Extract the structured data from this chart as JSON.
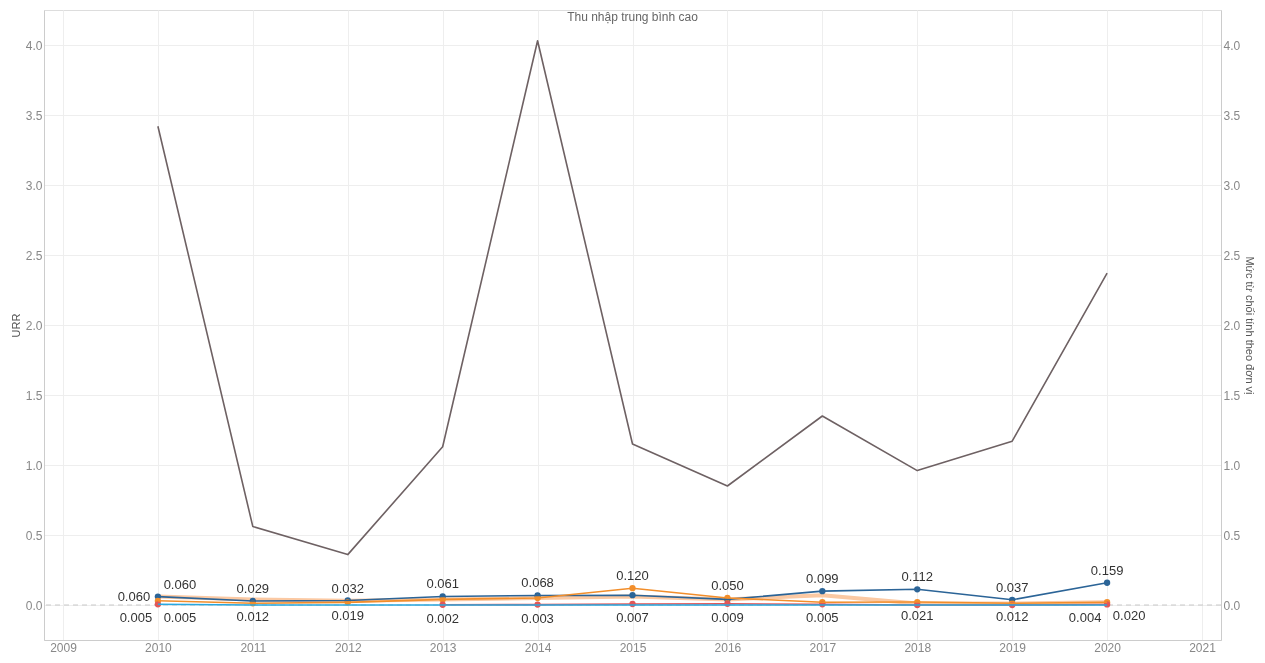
{
  "chart_data": {
    "type": "line",
    "title": "Thu nhập trung bình cao",
    "ylabel": "URR",
    "y2label": "Mức từ chối tính theo đơn vị",
    "x": [
      2010,
      2011,
      2012,
      2013,
      2014,
      2015,
      2016,
      2017,
      2018,
      2019,
      2020
    ],
    "xlim": [
      2008.8,
      2021.2
    ],
    "xticks": [
      2009,
      2010,
      2011,
      2012,
      2013,
      2014,
      2015,
      2016,
      2017,
      2018,
      2019,
      2020,
      2021
    ],
    "ylim": [
      -0.25,
      4.25
    ],
    "yticks": [
      {
        "value": 0,
        "label": "0.0"
      },
      0.5,
      {
        "value": 1,
        "label": "1.0"
      },
      1.5,
      {
        "value": 2,
        "label": "2.0"
      },
      2.5,
      {
        "value": 3,
        "label": "3.0"
      },
      3.5,
      {
        "value": 4,
        "label": "4.0"
      }
    ],
    "y2lim": [
      -0.25,
      4.25
    ],
    "y2ticks": [
      {
        "value": 0,
        "label": "0.0"
      },
      0.5,
      {
        "value": 1,
        "label": "1.0"
      },
      1.5,
      {
        "value": 2,
        "label": "2.0"
      },
      2.5,
      {
        "value": 3,
        "label": "3.0"
      },
      3.5,
      {
        "value": 4,
        "label": "4.0"
      }
    ],
    "grid": true,
    "ref_lines": [
      {
        "axis": "y",
        "value": 0,
        "color": "#c8c8c8",
        "line_style": "dashed"
      }
    ],
    "series": [
      {
        "color": "#fbc9a3",
        "marker": "none",
        "values": [
          0.06,
          0.04,
          0.03,
          0.04,
          0.05,
          0.06,
          0.04,
          0.07,
          0.01,
          0.01,
          0.02
        ],
        "value_labels": [
          "0.060",
          null,
          null,
          null,
          null,
          null,
          null,
          null,
          null,
          null,
          null
        ]
      },
      {
        "color": "#2b6497",
        "marker": "circle",
        "values": [
          0.06,
          0.029,
          0.032,
          0.061,
          0.068,
          0.07,
          0.04,
          0.099,
          0.112,
          0.037,
          0.159
        ],
        "value_labels": [
          "0.060",
          "0.029",
          "0.032",
          "0.061",
          "0.068",
          null,
          null,
          "0.099",
          "0.112",
          "0.037",
          "0.159"
        ]
      },
      {
        "color": "#f28e2b",
        "marker": "circle",
        "values": [
          0.03,
          0.012,
          0.019,
          0.04,
          0.05,
          0.12,
          0.05,
          0.02,
          0.021,
          0.012,
          0.02
        ],
        "value_labels": [
          null,
          "0.012",
          "0.019",
          null,
          null,
          "0.120",
          "0.050",
          null,
          "0.021",
          "0.012",
          "0.020"
        ]
      },
      {
        "color": "#e15759",
        "marker": "circle",
        "values": [
          0.005,
          null,
          null,
          0.002,
          0.003,
          0.007,
          0.009,
          0.005,
          0.0,
          0.0,
          0.004
        ],
        "value_labels": [
          "0.005",
          null,
          null,
          "0.002",
          "0.003",
          "0.007",
          "0.009",
          "0.005",
          null,
          null,
          "0.004"
        ]
      },
      {
        "color": "#29a8e0",
        "marker": "none",
        "values": [
          0.005,
          0.0,
          0.0,
          0.0,
          0.0,
          0.0,
          0.0,
          0.0,
          0.0,
          0.0,
          0.0
        ],
        "value_labels": [
          "0.005",
          null,
          null,
          null,
          null,
          null,
          null,
          null,
          null,
          null,
          null
        ]
      },
      {
        "color": "#6e6163",
        "marker": "none",
        "axis": "y2",
        "values": [
          3.42,
          0.56,
          0.36,
          1.13,
          4.03,
          1.15,
          0.85,
          1.35,
          0.96,
          1.17,
          2.37
        ]
      }
    ]
  }
}
